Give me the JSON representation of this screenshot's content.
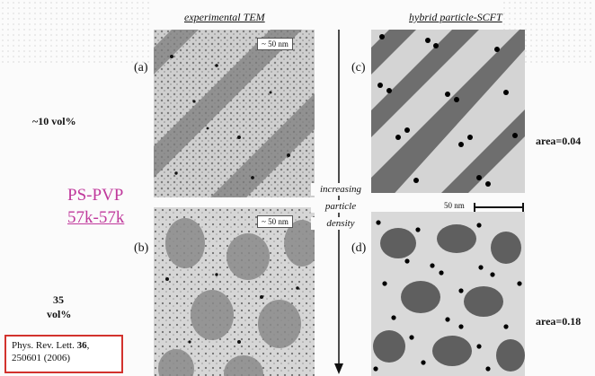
{
  "headers": {
    "left": "experimental TEM",
    "right": "hybrid particle-SCFT"
  },
  "panel_labels": {
    "a": "(a)",
    "b": "(b)",
    "c": "(c)",
    "d": "(d)"
  },
  "scale_tags": {
    "top": "~ 50 nm",
    "bottom": "~ 50 nm",
    "scft": "50 nm"
  },
  "rows": {
    "top_volume": "~10 vol%",
    "bottom_volume_1": "35",
    "bottom_volume_2": "vol%"
  },
  "material": {
    "line1": "PS-PVP",
    "line2": "57k-57k"
  },
  "arrow_text": [
    "increasing",
    "particle",
    "density"
  ],
  "areas": {
    "top": "area=0.04",
    "bottom": "area=0.18"
  },
  "citation": {
    "line1_prefix": "Phys. Rev. Lett. ",
    "volume": "36",
    "line1_suffix": ",",
    "line2": "250601 (2006)"
  }
}
